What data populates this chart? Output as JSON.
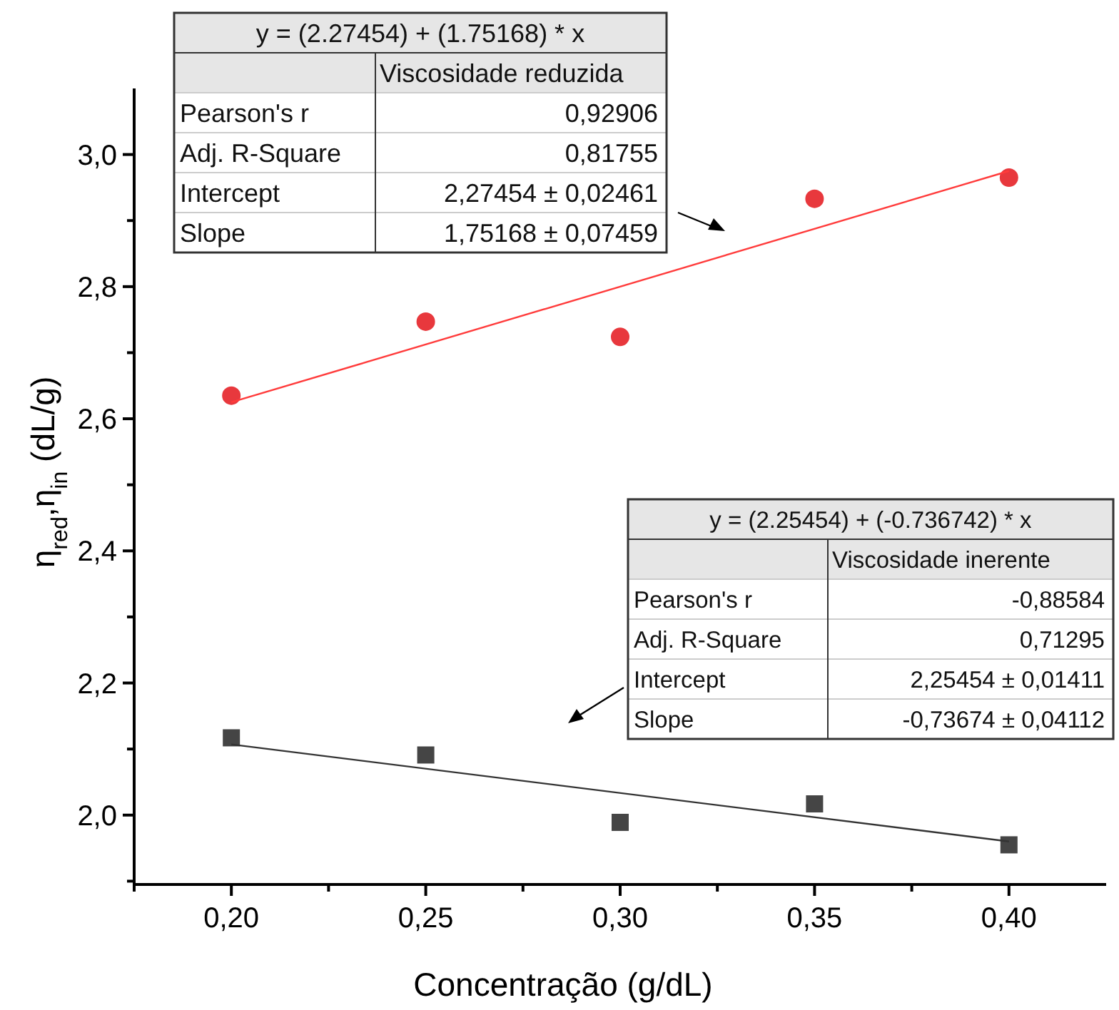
{
  "chart_data": {
    "type": "scatter",
    "xlabel": "Concentração (g/dL)",
    "ylabel": "η$_{red}$,η$_{in}$ (dL/g)",
    "xlim": [
      0.175,
      0.425
    ],
    "ylim": [
      1.895,
      3.1
    ],
    "xticks": [
      {
        "value": 0.175,
        "label": null
      },
      {
        "value": 0.2,
        "label": "0,20"
      },
      {
        "value": 0.225,
        "label": null
      },
      {
        "value": 0.25,
        "label": "0,25"
      },
      {
        "value": 0.275,
        "label": null
      },
      {
        "value": 0.3,
        "label": "0,30"
      },
      {
        "value": 0.325,
        "label": null
      },
      {
        "value": 0.35,
        "label": "0,35"
      },
      {
        "value": 0.375,
        "label": null
      },
      {
        "value": 0.4,
        "label": "0,40"
      }
    ],
    "yticks": [
      {
        "value": 1.9,
        "label": null
      },
      {
        "value": 2.0,
        "label": "2,0"
      },
      {
        "value": 2.1,
        "label": null
      },
      {
        "value": 2.2,
        "label": "2,2"
      },
      {
        "value": 2.3,
        "label": null
      },
      {
        "value": 2.4,
        "label": "2,4"
      },
      {
        "value": 2.5,
        "label": null
      },
      {
        "value": 2.6,
        "label": "2,6"
      },
      {
        "value": 2.7,
        "label": null
      },
      {
        "value": 2.8,
        "label": "2,8"
      },
      {
        "value": 2.9,
        "label": null
      },
      {
        "value": 3.0,
        "label": "3,0"
      }
    ],
    "grid": false,
    "series": [
      {
        "marker": "circle",
        "color": "#e8383d",
        "x": [
          0.2,
          0.25,
          0.3,
          0.35,
          0.4
        ],
        "values": [
          2.635,
          2.747,
          2.724,
          2.933,
          2.965
        ]
      },
      {
        "type": "line",
        "color": "#ff3b3b",
        "x": [
          0.2,
          0.4
        ],
        "values": [
          2.625,
          2.975
        ]
      },
      {
        "marker": "square",
        "color": "#454545",
        "x": [
          0.2,
          0.25,
          0.3,
          0.35,
          0.4
        ],
        "values": [
          2.117,
          2.091,
          1.989,
          2.017,
          1.955
        ]
      },
      {
        "type": "line",
        "color": "#333333",
        "x": [
          0.2,
          0.4
        ],
        "values": [
          2.107,
          1.96
        ]
      }
    ],
    "annotations": [
      "y = (2.27454) + (1.75168) * x",
      "Viscosidade reduzida",
      "Pearson's r",
      "0,92906",
      "Adj. R-Square",
      "0,81755",
      "Intercept",
      "2,27454 ± 0,02461",
      "Slope",
      "1,75168 ± 0,07459",
      "y = (2.25454) + (-0.736742) * x",
      "Viscosidade inerente",
      "Pearson's r",
      "-0,88584",
      "Adj. R-Square",
      "0,71295",
      "Intercept",
      "2,25454 ± 0,01411",
      "Slope",
      "-0,73674 ± 0,04112"
    ]
  }
}
